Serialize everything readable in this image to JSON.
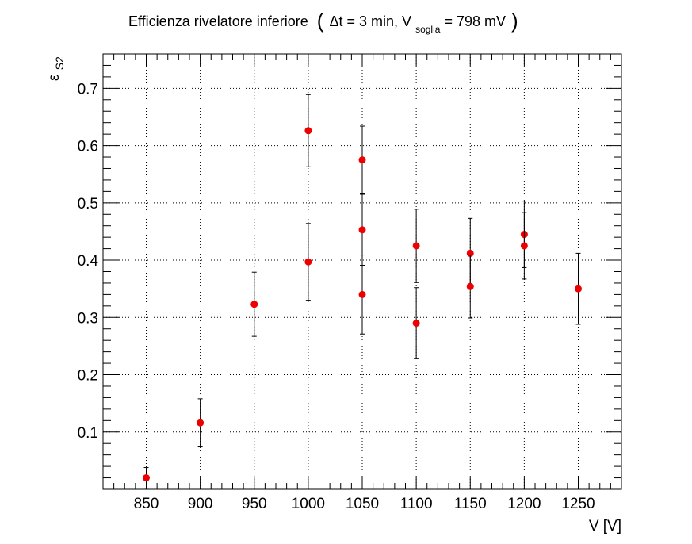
{
  "chart_data": {
    "type": "scatter",
    "title": {
      "main": "Efficienza rivelatore inferiore",
      "paren_open": "(",
      "delta": "Δt = 3 min, V",
      "sub": "soglia",
      "rest": " = 798 mV",
      "paren_close": ")"
    },
    "xlabel": "V [V]",
    "ylabel": {
      "base": "ε",
      "sub": "S2"
    },
    "xlim": [
      810,
      1290
    ],
    "ylim": [
      0,
      0.76
    ],
    "xticks": [
      850,
      900,
      950,
      1000,
      1050,
      1100,
      1150,
      1200,
      1250
    ],
    "yticks": [
      0.1,
      0.2,
      0.3,
      0.4,
      0.5,
      0.6,
      0.7
    ],
    "ytick_labels": [
      "0.1",
      "0.2",
      "0.3",
      "0.4",
      "0.5",
      "0.6",
      "0.7"
    ],
    "grid": true,
    "marker_color": "#ee0000",
    "errorbar_color": "#000000",
    "points": [
      {
        "x": 850,
        "y": 0.02,
        "err": 0.018
      },
      {
        "x": 900,
        "y": 0.116,
        "err": 0.042
      },
      {
        "x": 950,
        "y": 0.323,
        "err": 0.056
      },
      {
        "x": 1000,
        "y": 0.626,
        "err": 0.063
      },
      {
        "x": 1000,
        "y": 0.397,
        "err": 0.067
      },
      {
        "x": 1050,
        "y": 0.575,
        "err": 0.059
      },
      {
        "x": 1050,
        "y": 0.453,
        "err": 0.062
      },
      {
        "x": 1050,
        "y": 0.34,
        "err": 0.069
      },
      {
        "x": 1100,
        "y": 0.425,
        "err": 0.064
      },
      {
        "x": 1100,
        "y": 0.29,
        "err": 0.062
      },
      {
        "x": 1150,
        "y": 0.412,
        "err": 0.061
      },
      {
        "x": 1150,
        "y": 0.354,
        "err": 0.055
      },
      {
        "x": 1200,
        "y": 0.445,
        "err": 0.058
      },
      {
        "x": 1200,
        "y": 0.425,
        "err": 0.058
      },
      {
        "x": 1250,
        "y": 0.35,
        "err": 0.062
      }
    ]
  }
}
